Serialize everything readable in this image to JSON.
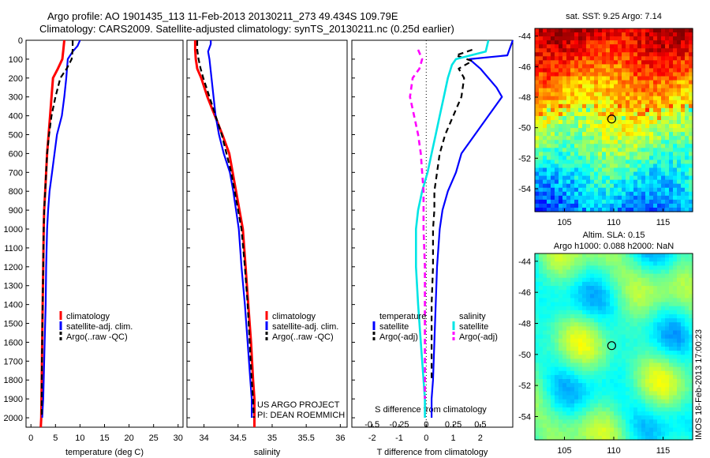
{
  "header": {
    "line1": "Argo profile: AO 1901435_113 11-Feb-2013 20130211_273 49.434S 109.79E",
    "line2": "Climatology: CARS2009. Satellite-adjusted climatology: synTS_20130211.nc (0.25d earlier)"
  },
  "footer_note": {
    "line1": "US ARGO PROJECT",
    "line2": "PI: DEAN ROEMMICH"
  },
  "vertical_stamp": "IMOS 18-Feb-2013 17:00:23",
  "colors": {
    "climatology": "#ff0000",
    "satellite": "#0000ff",
    "argo": "#000000",
    "satellite_salinity": "#00e5e5",
    "argo_salinity": "#ff00ff"
  },
  "chart_data": [
    {
      "type": "line",
      "xlabel": "temperature (deg C)",
      "ylabel": "",
      "xlim": [
        -1,
        31
      ],
      "ylim": [
        2050,
        0
      ],
      "xticks": [
        "0",
        "5",
        "10",
        "15",
        "20",
        "25",
        "30"
      ],
      "yticks": [
        "0",
        "100",
        "200",
        "300",
        "400",
        "500",
        "600",
        "700",
        "800",
        "900",
        "1000",
        "1100",
        "1200",
        "1300",
        "1400",
        "1500",
        "1600",
        "1700",
        "1800",
        "1900",
        "2000"
      ],
      "legend": [
        "climatology",
        "satellite-adj. clim.",
        "Argo(..raw -QC)"
      ],
      "legend_position": "bottom-center",
      "series": [
        {
          "name": "climatology",
          "x": [
            6.8,
            6.6,
            6.4,
            5.5,
            4.5,
            4.2,
            3.9,
            3.6,
            3.3,
            3.1,
            2.9,
            2.7,
            2.6,
            2.5,
            2.4,
            2.3,
            2.2,
            2.1,
            2.0
          ],
          "y": [
            0,
            50,
            100,
            150,
            200,
            300,
            400,
            500,
            600,
            700,
            800,
            900,
            1000,
            1200,
            1400,
            1600,
            1800,
            2000,
            2050
          ]
        },
        {
          "name": "satellite-adj. clim.",
          "x": [
            10.0,
            9.5,
            8.5,
            7.5,
            7.2,
            6.8,
            6.3,
            5.3,
            4.8,
            4.3,
            3.8,
            3.5,
            3.3,
            3.1,
            3.0,
            2.8,
            2.6,
            2.5,
            2.4,
            2.3
          ],
          "y": [
            0,
            30,
            60,
            100,
            200,
            300,
            400,
            500,
            600,
            700,
            800,
            900,
            1000,
            1200,
            1400,
            1600,
            1800,
            1900,
            1950,
            2000
          ]
        },
        {
          "name": "Argo(..raw -QC)",
          "x": [
            8.5,
            8.5,
            8.3,
            7.3,
            6.0,
            5.0,
            4.2,
            3.7,
            3.3,
            3.1,
            2.9,
            2.7,
            2.6,
            2.5,
            2.4,
            2.3,
            2.2,
            2.2
          ],
          "y": [
            0,
            50,
            100,
            150,
            200,
            300,
            400,
            500,
            600,
            700,
            800,
            900,
            1000,
            1200,
            1400,
            1600,
            1800,
            2000
          ]
        }
      ]
    },
    {
      "type": "line",
      "xlabel": "salinity",
      "ylabel": "",
      "xlim": [
        33.75,
        36.1
      ],
      "ylim": [
        2050,
        0
      ],
      "xticks": [
        "34",
        "34.5",
        "35",
        "35.5",
        "36"
      ],
      "legend": [
        "climatology",
        "satellite-adj. clim.",
        "Argo(..raw -QC)"
      ],
      "legend_position": "bottom-right",
      "series": [
        {
          "name": "climatology",
          "x": [
            33.87,
            33.87,
            33.88,
            33.9,
            33.96,
            34.05,
            34.16,
            34.27,
            34.37,
            34.42,
            34.47,
            34.52,
            34.57,
            34.61,
            34.65,
            34.69,
            34.72,
            34.74,
            34.74
          ],
          "y": [
            0,
            50,
            100,
            150,
            200,
            300,
            400,
            500,
            600,
            700,
            800,
            900,
            1000,
            1200,
            1400,
            1600,
            1800,
            1900,
            2050
          ]
        },
        {
          "name": "satellite-adj. clim.",
          "x": [
            34.1,
            34.1,
            34.06,
            34.08,
            34.11,
            34.14,
            34.17,
            34.22,
            34.29,
            34.38,
            34.43,
            34.47,
            34.51,
            34.55,
            34.6,
            34.64,
            34.68,
            34.7,
            34.7
          ],
          "y": [
            0,
            20,
            60,
            100,
            200,
            300,
            400,
            500,
            600,
            700,
            800,
            900,
            1000,
            1200,
            1400,
            1600,
            1800,
            1900,
            2000
          ]
        },
        {
          "name": "Argo(..raw -QC)",
          "x": [
            33.9,
            33.9,
            33.92,
            33.95,
            33.99,
            34.08,
            34.17,
            34.26,
            34.33,
            34.4,
            34.45,
            34.5,
            34.55,
            34.6,
            34.64,
            34.67,
            34.7,
            34.72,
            34.73
          ],
          "y": [
            0,
            50,
            100,
            150,
            200,
            300,
            400,
            500,
            600,
            700,
            800,
            900,
            1000,
            1200,
            1400,
            1600,
            1800,
            1900,
            2000
          ]
        }
      ]
    },
    {
      "type": "line",
      "xlabel": "T difference from climatology",
      "xlabel_top": "S difference from climatology",
      "xlim": [
        -2.75,
        3.2
      ],
      "ylim": [
        2050,
        0
      ],
      "xticks": [
        "-2",
        "-1",
        "0",
        "1",
        "2"
      ],
      "xticks_top": [
        "-0.5",
        "-0.25",
        "0",
        "0.25",
        "0.5"
      ],
      "legend_left_title": "temperature",
      "legend_right_title": "salinity",
      "legend": [
        "satellite",
        "Argo(-adj)",
        "satellite",
        "Argo(-adj)"
      ],
      "legend_position": "bottom",
      "zero_line": "dotted",
      "series": [
        {
          "name": "satellite",
          "x": [
            3.2,
            3.0,
            1.6,
            2.0,
            2.6,
            2.8,
            2.3,
            1.8,
            1.3,
            1.1,
            0.8,
            0.6,
            0.5,
            0.4,
            0.35,
            0.3,
            0.25,
            0.2,
            0.2
          ],
          "y": [
            0,
            80,
            100,
            150,
            250,
            300,
            400,
            500,
            600,
            700,
            800,
            900,
            1000,
            1200,
            1400,
            1600,
            1800,
            1900,
            2000
          ]
        },
        {
          "name": "Argo(-adj)",
          "x": [
            1.7,
            1.1,
            1.7,
            1.2,
            1.4,
            1.3,
            1.0,
            0.7,
            0.5,
            0.4,
            0.3,
            0.3,
            0.25,
            0.25,
            0.2,
            0.2,
            0.2
          ],
          "y": [
            50,
            80,
            110,
            150,
            200,
            300,
            400,
            500,
            600,
            700,
            800,
            900,
            1000,
            1200,
            1400,
            1600,
            1800
          ]
        },
        {
          "name": "satellite",
          "x": [
            2.3,
            2.2,
            1.1,
            0.95,
            0.8,
            0.65,
            0.5,
            0.35,
            0.2,
            0.05,
            -0.15,
            -0.3,
            -0.38,
            -0.38,
            -0.3,
            -0.2,
            -0.1,
            -0.05,
            -0.05
          ],
          "y": [
            0,
            60,
            100,
            130,
            200,
            300,
            400,
            500,
            600,
            700,
            800,
            900,
            1000,
            1200,
            1400,
            1600,
            1800,
            1900,
            2000
          ]
        },
        {
          "name": "Argo(-adj)",
          "x": [
            -0.3,
            -0.15,
            -0.25,
            -0.5,
            -0.6,
            -0.45,
            -0.3,
            -0.2,
            -0.15,
            -0.1,
            -0.1,
            -0.1,
            -0.05,
            -0.05,
            -0.05,
            -0.05,
            -0.05
          ],
          "y": [
            50,
            100,
            150,
            200,
            300,
            400,
            500,
            600,
            700,
            800,
            900,
            1000,
            1200,
            1400,
            1600,
            1800,
            1900
          ]
        }
      ]
    },
    {
      "type": "heatmap",
      "title": "sat. SST: 9.25 Argo: 7.14",
      "xlim": [
        102,
        118
      ],
      "ylim": [
        -55.5,
        -43.5
      ],
      "xticks": [
        "105",
        "110",
        "115"
      ],
      "yticks": [
        "-44",
        "-46",
        "-48",
        "-50",
        "-52",
        "-54"
      ],
      "marker": {
        "x": 109.79,
        "y": -49.434
      },
      "palette": "jet"
    },
    {
      "type": "heatmap",
      "title_line1": "Altim. SLA: 0.15",
      "title_line2": "Argo h1000: 0.088 h2000: NaN",
      "xlim": [
        102,
        118
      ],
      "ylim": [
        -55.5,
        -43.5
      ],
      "xticks": [
        "105",
        "110",
        "115"
      ],
      "yticks": [
        "-44",
        "-46",
        "-48",
        "-50",
        "-52",
        "-54"
      ],
      "marker": {
        "x": 109.79,
        "y": -49.434
      },
      "palette": "jet"
    }
  ]
}
